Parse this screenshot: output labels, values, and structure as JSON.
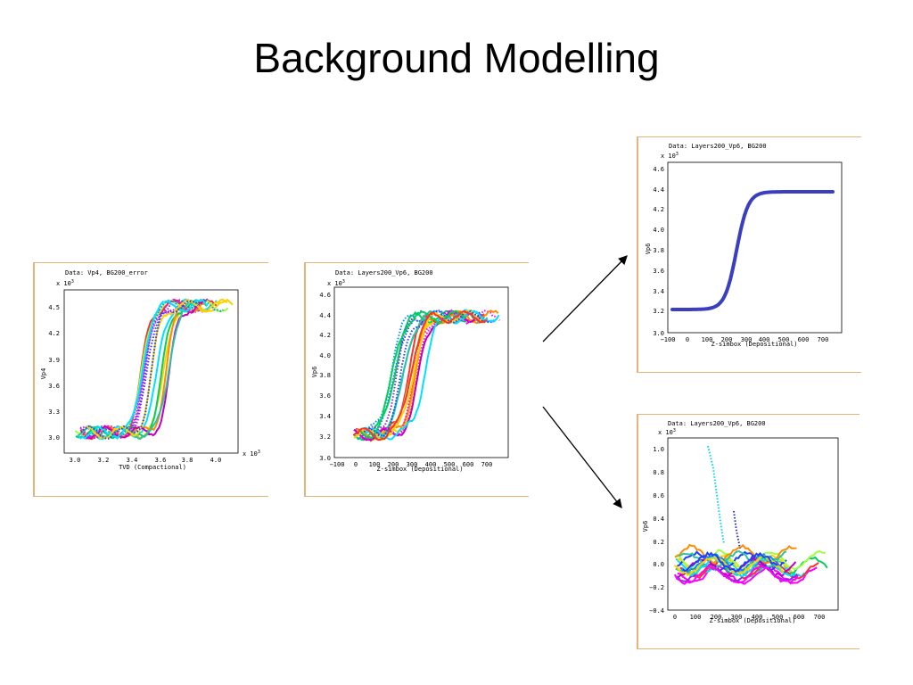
{
  "slide": {
    "title": "Background Modelling"
  },
  "colors": {
    "panel_border": "#e6b47a",
    "smooth_curve": "#3a3fc0",
    "well_palette": [
      "#ff00ff",
      "#00e0ff",
      "#ffd000",
      "#2040ff",
      "#00d060",
      "#ff3030",
      "#8a2be2",
      "#a0ff40",
      "#ff8c00",
      "#0090ff",
      "#c000c0",
      "#30c0a0"
    ]
  },
  "charts": {
    "vp4": {
      "header": "Data:  Vp4, BG200_error",
      "exp_y": "x 10",
      "exp_x": "x 10",
      "exp_sup": "3",
      "ylabel": "Vp4",
      "xlabel": "TVD (Compactional)",
      "xticks": [
        "3.0",
        "3.2",
        "3.4",
        "3.6",
        "3.8",
        "4.0"
      ],
      "yticks": [
        "3.0",
        "3.3",
        "3.6",
        "3.9",
        "4.2",
        "4.5"
      ]
    },
    "vp6": {
      "header": "Data:  Layers200_Vp6, BG200",
      "exp_y": "x 10",
      "exp_sup": "3",
      "ylabel": "Vp6",
      "xlabel": "Z-simbox (Depositional)",
      "xticks": [
        "−100",
        "0",
        "100",
        "200",
        "300",
        "400",
        "500",
        "600",
        "700"
      ],
      "yticks": [
        "3.0",
        "3.2",
        "3.4",
        "3.6",
        "3.8",
        "4.0",
        "4.2",
        "4.4",
        "4.6"
      ]
    },
    "background": {
      "header": "Data:  Layers200_Vp6, BG200",
      "exp_y": "x 10",
      "exp_sup": "3",
      "ylabel": "Vp6",
      "xlabel": "Z-simbox (Depositional)",
      "xticks": [
        "−100",
        "0",
        "100",
        "200",
        "300",
        "400",
        "500",
        "600",
        "700"
      ],
      "yticks": [
        "3.0",
        "3.2",
        "3.4",
        "3.6",
        "3.8",
        "4.0",
        "4.2",
        "4.4",
        "4.6"
      ]
    },
    "residual": {
      "header": "Data:  Layers200_Vp6, BG200",
      "exp_y": "x 10",
      "exp_sup": "3",
      "ylabel": "Vp6",
      "xlabel": "Z-simbox (Depositional)",
      "xticks": [
        "0",
        "100",
        "200",
        "300",
        "400",
        "500",
        "600",
        "700"
      ],
      "yticks": [
        "−0.4",
        "−0.2",
        "0.0",
        "0.2",
        "0.4",
        "0.6",
        "0.8",
        "1.0"
      ]
    }
  }
}
